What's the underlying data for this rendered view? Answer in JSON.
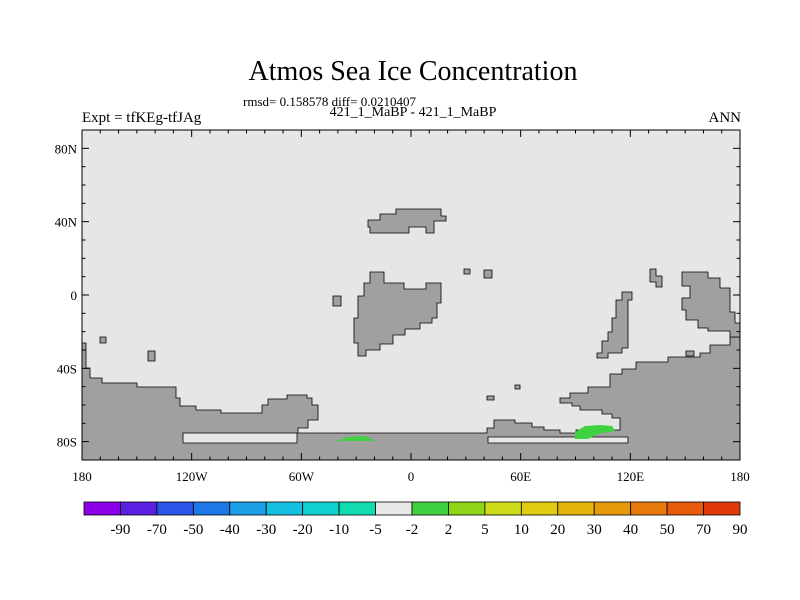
{
  "header": {
    "title": "Atmos Sea Ice Concentration",
    "stats": "rmsd= 0.158578 diff= 0.0210407",
    "subtitle": "421_1_MaBP - 421_1_MaBP",
    "expt": "Expt = tfKEg-tfJAg",
    "season": "ANN"
  },
  "map": {
    "lon_range": [
      -180,
      180
    ],
    "lat_range": [
      -90,
      90
    ],
    "x_ticks": [
      {
        "lon": -180,
        "label": "180"
      },
      {
        "lon": -120,
        "label": "120W"
      },
      {
        "lon": -60,
        "label": "60W"
      },
      {
        "lon": 0,
        "label": "0"
      },
      {
        "lon": 60,
        "label": "60E"
      },
      {
        "lon": 120,
        "label": "120E"
      },
      {
        "lon": 180,
        "label": "180"
      }
    ],
    "y_ticks": [
      {
        "lat": 80,
        "label": "80N"
      },
      {
        "lat": 40,
        "label": "40N"
      },
      {
        "lat": 0,
        "label": "0"
      },
      {
        "lat": -40,
        "label": "40S"
      },
      {
        "lat": -80,
        "label": "80S"
      }
    ],
    "colors": {
      "background": "#e6e6e6",
      "land": "#a0a0a0",
      "outline": "#000000"
    },
    "anomaly_regions": [
      {
        "label": "Weddell Sea positive anomaly",
        "range": "2 to 5",
        "color": "#3fd13f"
      },
      {
        "label": "East Antarctic positive anomaly",
        "range": "2 to 5",
        "color": "#3fd13f"
      }
    ]
  },
  "colorbar": {
    "colors": [
      "#8b00e8",
      "#5a1fe0",
      "#2a55e6",
      "#1c78e8",
      "#1ea0e8",
      "#14bfe0",
      "#10d0d0",
      "#12ddb2",
      "#e8e8e8",
      "#3fd13f",
      "#8fd418",
      "#cfdc1a",
      "#e0cc10",
      "#e6b40c",
      "#e69a0a",
      "#e67a0a",
      "#e85a0c",
      "#e03a0a"
    ],
    "labels": [
      "-90",
      "-70",
      "-50",
      "-40",
      "-30",
      "-20",
      "-10",
      "-5",
      "-2",
      "2",
      "5",
      "10",
      "20",
      "30",
      "40",
      "50",
      "70",
      "90"
    ]
  }
}
